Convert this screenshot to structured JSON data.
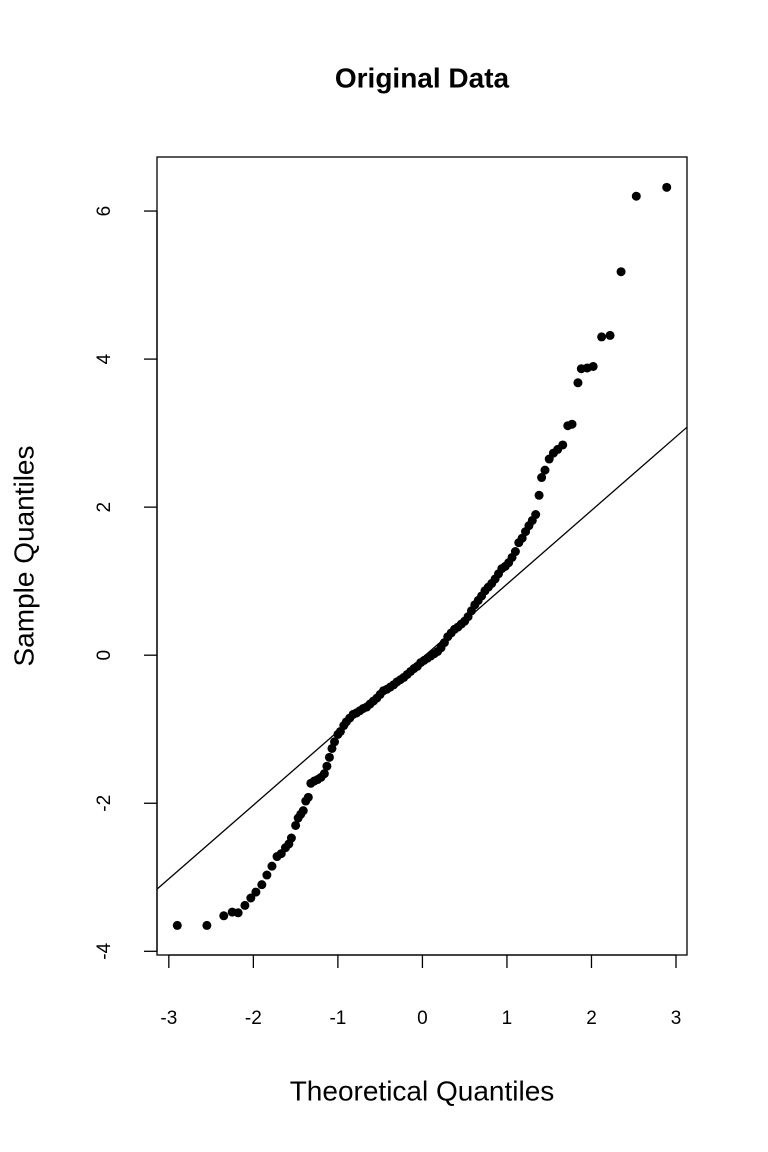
{
  "chart_data": {
    "type": "scatter",
    "title": "Original Data",
    "x_label": "Theoretical Quantiles",
    "y_label": "Sample Quantiles",
    "xlim": [
      -3.14,
      3.13
    ],
    "ylim": [
      -4.05,
      6.73
    ],
    "xticks": [
      -3,
      -2,
      -1,
      0,
      1,
      2,
      3
    ],
    "yticks": [
      -4,
      -2,
      0,
      2,
      4,
      6
    ],
    "color": "#000000",
    "x": [
      -2.9,
      -2.55,
      -2.35,
      -2.25,
      -2.18,
      -2.1,
      -2.03,
      -1.97,
      -1.9,
      -1.84,
      -1.78,
      -1.72,
      -1.67,
      -1.62,
      -1.58,
      -1.55,
      -1.5,
      -1.47,
      -1.44,
      -1.41,
      -1.38,
      -1.35,
      -1.32,
      -1.28,
      -1.24,
      -1.2,
      -1.16,
      -1.13,
      -1.1,
      -1.07,
      -1.04,
      -1.0,
      -0.97,
      -0.93,
      -0.9,
      -0.86,
      -0.82,
      -0.78,
      -0.74,
      -0.7,
      -0.66,
      -0.62,
      -0.58,
      -0.54,
      -0.5,
      -0.46,
      -0.42,
      -0.38,
      -0.34,
      -0.3,
      -0.26,
      -0.22,
      -0.18,
      -0.14,
      -0.1,
      -0.06,
      -0.02,
      0.02,
      0.06,
      0.1,
      0.14,
      0.18,
      0.22,
      0.26,
      0.3,
      0.34,
      0.38,
      0.42,
      0.46,
      0.5,
      0.54,
      0.58,
      0.62,
      0.66,
      0.7,
      0.74,
      0.78,
      0.82,
      0.86,
      0.9,
      0.94,
      0.98,
      1.02,
      1.06,
      1.1,
      1.14,
      1.18,
      1.22,
      1.26,
      1.3,
      1.34,
      1.38,
      1.41,
      1.45,
      1.5,
      1.55,
      1.6,
      1.66,
      1.72,
      1.77,
      1.84,
      1.88,
      1.95,
      2.02,
      2.12,
      2.22,
      2.35,
      2.53,
      2.89
    ],
    "values": [
      -3.65,
      -3.65,
      -3.52,
      -3.47,
      -3.48,
      -3.38,
      -3.28,
      -3.2,
      -3.1,
      -2.97,
      -2.85,
      -2.72,
      -2.68,
      -2.6,
      -2.55,
      -2.47,
      -2.3,
      -2.2,
      -2.15,
      -2.1,
      -1.97,
      -1.92,
      -1.73,
      -1.7,
      -1.68,
      -1.65,
      -1.6,
      -1.5,
      -1.38,
      -1.26,
      -1.17,
      -1.07,
      -1.03,
      -0.95,
      -0.9,
      -0.85,
      -0.8,
      -0.78,
      -0.75,
      -0.72,
      -0.7,
      -0.66,
      -0.62,
      -0.58,
      -0.53,
      -0.48,
      -0.46,
      -0.43,
      -0.4,
      -0.36,
      -0.33,
      -0.3,
      -0.26,
      -0.22,
      -0.18,
      -0.15,
      -0.1,
      -0.07,
      -0.04,
      -0.01,
      0.02,
      0.05,
      0.1,
      0.17,
      0.25,
      0.3,
      0.35,
      0.38,
      0.42,
      0.46,
      0.52,
      0.6,
      0.68,
      0.74,
      0.8,
      0.87,
      0.92,
      0.97,
      1.03,
      1.1,
      1.17,
      1.2,
      1.25,
      1.32,
      1.4,
      1.52,
      1.58,
      1.67,
      1.75,
      1.82,
      1.9,
      2.16,
      2.4,
      2.5,
      2.65,
      2.73,
      2.78,
      2.84,
      3.1,
      3.12,
      3.68,
      3.87,
      3.88,
      3.9,
      4.3,
      4.32,
      5.18,
      6.2,
      6.32
    ],
    "reference_line": {
      "x": [
        -3.14,
        3.13
      ],
      "values": [
        -3.16,
        3.08
      ]
    }
  }
}
